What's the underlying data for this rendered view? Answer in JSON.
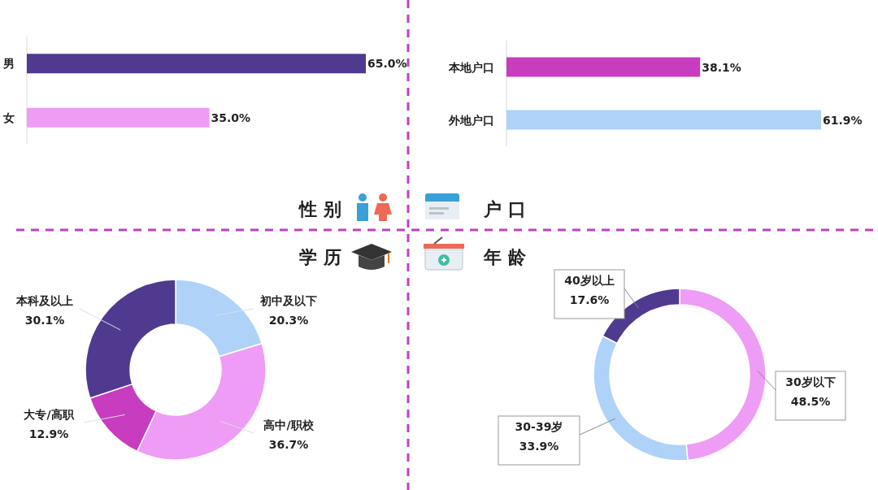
{
  "chart_data": [
    {
      "type": "bar",
      "orientation": "horizontal",
      "title": "性 别",
      "categories": [
        "男",
        "女"
      ],
      "values": [
        65.0,
        35.0
      ],
      "colors": [
        "#4f3a8f",
        "#ee9cf5"
      ],
      "data_labels": true,
      "value_labels": [
        "65.0%",
        "35.0%"
      ]
    },
    {
      "type": "bar",
      "orientation": "horizontal",
      "title": "户 口",
      "categories": [
        "本地户口",
        "外地户口"
      ],
      "values": [
        38.1,
        61.9
      ],
      "colors": [
        "#c83cbf",
        "#aed2f8"
      ],
      "data_labels": true,
      "value_labels": [
        "38.1%",
        "61.9%"
      ]
    },
    {
      "type": "donut",
      "title": "学 历",
      "categories": [
        "初中及以下",
        "高中/职校",
        "大专/高职",
        "本科及以上"
      ],
      "values": [
        20.3,
        36.7,
        12.9,
        30.1
      ],
      "colors": [
        "#aed2f8",
        "#ee9cf5",
        "#c83cbf",
        "#4f3a8f"
      ],
      "data_labels": true,
      "value_labels": [
        "20.3%",
        "36.7%",
        "12.9%",
        "30.1%"
      ]
    },
    {
      "type": "donut",
      "title": "年 龄",
      "categories": [
        "30岁以下",
        "30-39岁",
        "40岁以上"
      ],
      "values": [
        48.5,
        33.9,
        17.6
      ],
      "colors": [
        "#ee9cf5",
        "#aed2f8",
        "#4f3a8f"
      ],
      "data_labels": true,
      "value_labels": [
        "48.5%",
        "33.9%",
        "17.6%"
      ]
    }
  ]
}
